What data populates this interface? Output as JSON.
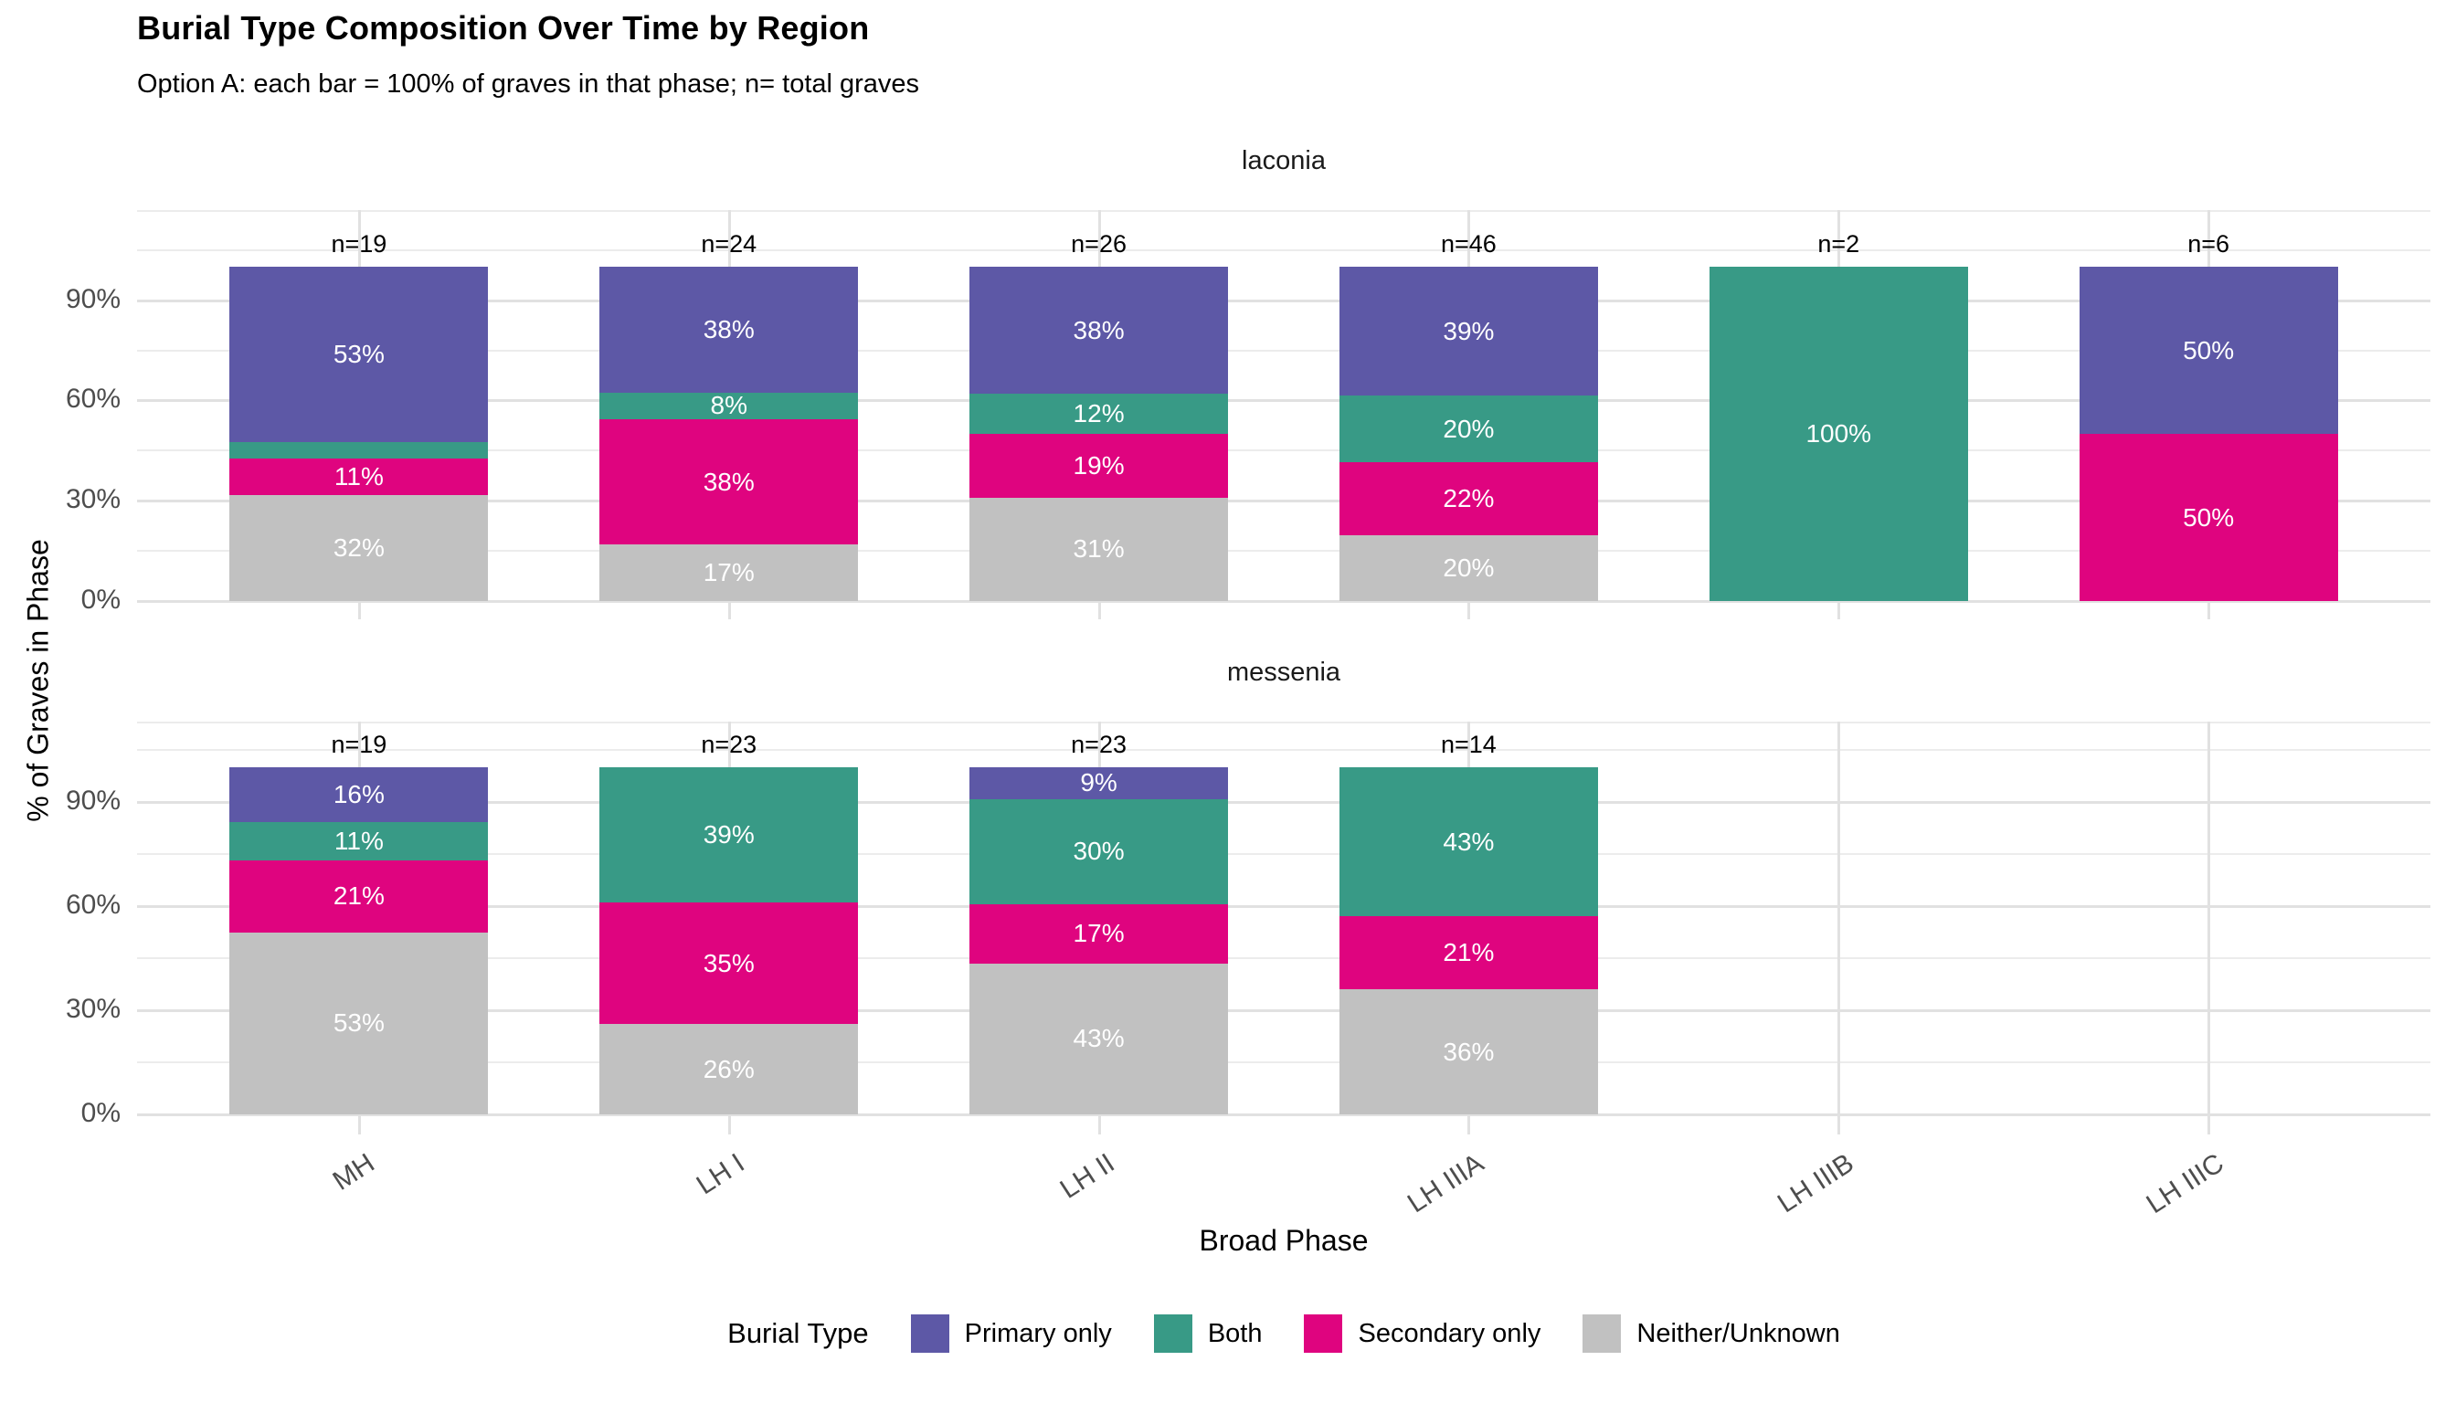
{
  "chart_data": {
    "type": "bar",
    "stacked": true,
    "percent_scale": true,
    "title": "Burial Type Composition Over Time by Region",
    "subtitle": "Option A: each bar = 100% of graves in that phase; n= total graves",
    "xlabel": "Broad Phase",
    "ylabel": "% of Graves in Phase",
    "categories": [
      "MH",
      "LH I",
      "LH II",
      "LH IIIA",
      "LH IIIB",
      "LH IIIC"
    ],
    "y_ticks": [
      {
        "label": "90%",
        "value": 90
      },
      {
        "label": "60%",
        "value": 60
      },
      {
        "label": "30%",
        "value": 30
      },
      {
        "label": "0%",
        "value": 0
      }
    ],
    "y_gridlines": {
      "major": [
        0,
        30,
        60,
        90
      ],
      "minor": [
        15,
        45,
        75,
        105
      ]
    },
    "grid": true,
    "legend_position": "bottom",
    "colors": {
      "Primary only": "#5d58a6",
      "Both": "#389a86",
      "Secondary only": "#df047f",
      "Neither/Unknown": "#c1c1c1"
    },
    "legend": {
      "title": "Burial Type",
      "entries": [
        {
          "label": "Primary only",
          "color": "#5d58a6"
        },
        {
          "label": "Both",
          "color": "#389a86"
        },
        {
          "label": "Secondary only",
          "color": "#df047f"
        },
        {
          "label": "Neither/Unknown",
          "color": "#c1c1c1"
        }
      ]
    },
    "series_order_top_to_bottom": [
      "Primary only",
      "Both",
      "Secondary only",
      "Neither/Unknown"
    ],
    "facets": [
      {
        "name": "laconia",
        "bars": [
          {
            "category": "MH",
            "n": "n=19",
            "segments": [
              {
                "type": "Primary only",
                "value": 53,
                "label": "53%"
              },
              {
                "type": "Both",
                "value": 5,
                "label": ""
              },
              {
                "type": "Secondary only",
                "value": 11,
                "label": "11%"
              },
              {
                "type": "Neither/Unknown",
                "value": 32,
                "label": "32%"
              }
            ]
          },
          {
            "category": "LH I",
            "n": "n=24",
            "segments": [
              {
                "type": "Primary only",
                "value": 38,
                "label": "38%"
              },
              {
                "type": "Both",
                "value": 8,
                "label": "8%"
              },
              {
                "type": "Secondary only",
                "value": 38,
                "label": "38%"
              },
              {
                "type": "Neither/Unknown",
                "value": 17,
                "label": "17%"
              }
            ]
          },
          {
            "category": "LH II",
            "n": "n=26",
            "segments": [
              {
                "type": "Primary only",
                "value": 38,
                "label": "38%"
              },
              {
                "type": "Both",
                "value": 12,
                "label": "12%"
              },
              {
                "type": "Secondary only",
                "value": 19,
                "label": "19%"
              },
              {
                "type": "Neither/Unknown",
                "value": 31,
                "label": "31%"
              }
            ]
          },
          {
            "category": "LH IIIA",
            "n": "n=46",
            "segments": [
              {
                "type": "Primary only",
                "value": 39,
                "label": "39%"
              },
              {
                "type": "Both",
                "value": 20,
                "label": "20%"
              },
              {
                "type": "Secondary only",
                "value": 22,
                "label": "22%"
              },
              {
                "type": "Neither/Unknown",
                "value": 20,
                "label": "20%"
              }
            ]
          },
          {
            "category": "LH IIIB",
            "n": "n=2",
            "segments": [
              {
                "type": "Both",
                "value": 100,
                "label": "100%"
              }
            ]
          },
          {
            "category": "LH IIIC",
            "n": "n=6",
            "segments": [
              {
                "type": "Primary only",
                "value": 50,
                "label": "50%"
              },
              {
                "type": "Secondary only",
                "value": 50,
                "label": "50%"
              }
            ]
          }
        ]
      },
      {
        "name": "messenia",
        "bars": [
          {
            "category": "MH",
            "n": "n=19",
            "segments": [
              {
                "type": "Primary only",
                "value": 16,
                "label": "16%"
              },
              {
                "type": "Both",
                "value": 11,
                "label": "11%"
              },
              {
                "type": "Secondary only",
                "value": 21,
                "label": "21%"
              },
              {
                "type": "Neither/Unknown",
                "value": 53,
                "label": "53%"
              }
            ]
          },
          {
            "category": "LH I",
            "n": "n=23",
            "segments": [
              {
                "type": "Both",
                "value": 39,
                "label": "39%"
              },
              {
                "type": "Secondary only",
                "value": 35,
                "label": "35%"
              },
              {
                "type": "Neither/Unknown",
                "value": 26,
                "label": "26%"
              }
            ]
          },
          {
            "category": "LH II",
            "n": "n=23",
            "segments": [
              {
                "type": "Primary only",
                "value": 9,
                "label": "9%"
              },
              {
                "type": "Both",
                "value": 30,
                "label": "30%"
              },
              {
                "type": "Secondary only",
                "value": 17,
                "label": "17%"
              },
              {
                "type": "Neither/Unknown",
                "value": 43,
                "label": "43%"
              }
            ]
          },
          {
            "category": "LH IIIA",
            "n": "n=14",
            "segments": [
              {
                "type": "Both",
                "value": 43,
                "label": "43%"
              },
              {
                "type": "Secondary only",
                "value": 21,
                "label": "21%"
              },
              {
                "type": "Neither/Unknown",
                "value": 36,
                "label": "36%"
              }
            ]
          }
        ]
      }
    ]
  }
}
